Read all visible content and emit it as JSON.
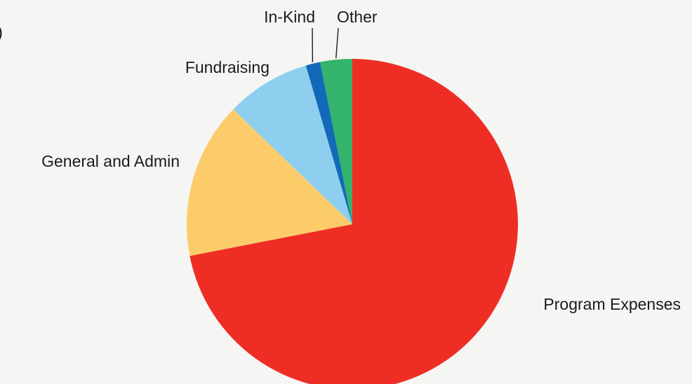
{
  "chart_data": {
    "type": "pie",
    "title": "",
    "start_angle": "12 o'clock",
    "direction": "clockwise",
    "slices": [
      {
        "label": "Program Expenses",
        "value": 71.5,
        "color": "#ee2e24"
      },
      {
        "label": "General and Admin",
        "value": 15.2,
        "color": "#fdcc6a"
      },
      {
        "label": "Fundraising",
        "value": 8.2,
        "color": "#8ecff0"
      },
      {
        "label": "In-Kind",
        "value": 1.4,
        "color": "#1169b8"
      },
      {
        "label": "Other",
        "value": 3.1,
        "color": "#33b36c"
      }
    ]
  },
  "edge_glyph": ")"
}
